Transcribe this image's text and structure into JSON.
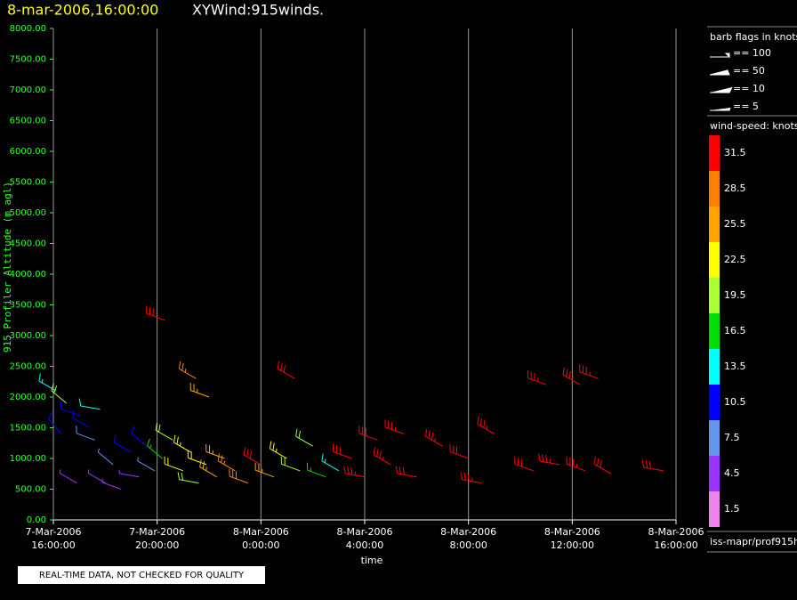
{
  "chart_data": {
    "type": "wind-barb",
    "title": "8-mar-2006,16:00:00",
    "subtitle": "XYWind:915winds.",
    "x_label": "time",
    "y_label": "915 Profiler Altitude (m agl)",
    "xlim": [
      0,
      24
    ],
    "xticks": [
      {
        "value": 0,
        "label": [
          "7-Mar-2006",
          "16:00:00"
        ]
      },
      {
        "value": 4,
        "label": [
          "7-Mar-2006",
          "20:00:00"
        ]
      },
      {
        "value": 8,
        "label": [
          "8-Mar-2006",
          "0:00:00"
        ]
      },
      {
        "value": 12,
        "label": [
          "8-Mar-2006",
          "4:00:00"
        ]
      },
      {
        "value": 16,
        "label": [
          "8-Mar-2006",
          "8:00:00"
        ]
      },
      {
        "value": 20,
        "label": [
          "8-Mar-2006",
          "12:00:00"
        ]
      },
      {
        "value": 24,
        "label": [
          "8-Mar-2006",
          "16:00:00"
        ]
      }
    ],
    "ylim": [
      0,
      8000
    ],
    "yticks": [
      {
        "value": 0,
        "label": "0.00"
      },
      {
        "value": 500,
        "label": "500.00"
      },
      {
        "value": 1000,
        "label": "1000.00"
      },
      {
        "value": 1500,
        "label": "1500.00"
      },
      {
        "value": 2000,
        "label": "2000.00"
      },
      {
        "value": 2500,
        "label": "2500.00"
      },
      {
        "value": 3000,
        "label": "3000.00"
      },
      {
        "value": 3500,
        "label": "3500.00"
      },
      {
        "value": 4000,
        "label": "4000.00"
      },
      {
        "value": 4500,
        "label": "4500.00"
      },
      {
        "value": 5000,
        "label": "5000.00"
      },
      {
        "value": 5500,
        "label": "5500.00"
      },
      {
        "value": 6000,
        "label": "6000.00"
      },
      {
        "value": 6500,
        "label": "6500.00"
      },
      {
        "value": 7000,
        "label": "7000.00"
      },
      {
        "value": 7500,
        "label": "7500.00"
      },
      {
        "value": 8000,
        "label": "8000.00"
      }
    ],
    "grid": true,
    "barbs": {
      "x": [
        0.1,
        0.5,
        1.0,
        1.4,
        1.8,
        0.3,
        0.9,
        1.6,
        2.0,
        2.3,
        2.6,
        3.0,
        3.3,
        3.6,
        3.9,
        4.2,
        4.6,
        5.0,
        5.3,
        5.6,
        5.9,
        4.3,
        5.5,
        6.0,
        6.3,
        6.6,
        7.0,
        7.5,
        8.0,
        8.5,
        9.0,
        9.5,
        10.0,
        10.5,
        9.3,
        11.0,
        11.5,
        12.0,
        12.5,
        13.0,
        13.5,
        14.0,
        15.0,
        16.0,
        16.5,
        17.0,
        18.5,
        19.5,
        20.5,
        21.5,
        19.0,
        20.3,
        21.0,
        23.5
      ],
      "altitude": [
        2100,
        1900,
        1700,
        1500,
        1800,
        1400,
        600,
        1300,
        600,
        900,
        500,
        1100,
        700,
        1200,
        800,
        1000,
        1300,
        800,
        1100,
        600,
        900,
        3250,
        2300,
        2000,
        700,
        1000,
        800,
        600,
        900,
        700,
        1000,
        800,
        1200,
        700,
        2300,
        800,
        1000,
        700,
        1300,
        900,
        1400,
        700,
        1200,
        1000,
        600,
        1400,
        800,
        900,
        800,
        750,
        2200,
        2200,
        2300,
        800
      ],
      "speed": [
        14,
        20,
        10,
        9,
        12,
        9,
        5,
        8,
        4,
        6,
        5,
        9,
        4,
        10,
        7,
        15,
        18,
        21,
        23,
        20,
        22,
        30,
        27,
        26,
        26,
        24,
        27,
        29,
        30,
        25,
        23,
        20,
        18,
        17,
        30,
        14,
        32,
        33,
        32,
        34,
        33,
        32,
        33,
        32,
        33,
        34,
        32,
        33,
        33,
        32,
        33,
        34,
        33,
        32
      ],
      "direction": [
        300,
        310,
        290,
        300,
        280,
        320,
        300,
        290,
        300,
        310,
        290,
        300,
        280,
        310,
        300,
        310,
        300,
        290,
        300,
        280,
        290,
        290,
        300,
        290,
        300,
        290,
        300,
        290,
        300,
        290,
        300,
        290,
        300,
        290,
        300,
        300,
        290,
        280,
        290,
        300,
        290,
        280,
        300,
        290,
        280,
        300,
        290,
        280,
        290,
        300,
        290,
        300,
        290,
        280
      ]
    },
    "barb_legend": {
      "title": "barb flags in knots",
      "entries": [
        "== 100",
        "== 50",
        "== 10",
        "== 5"
      ]
    },
    "colorbar": {
      "title": "wind-speed: knots",
      "labels": [
        31.5,
        28.5,
        25.5,
        22.5,
        19.5,
        16.5,
        13.5,
        10.5,
        7.5,
        4.5,
        1.5
      ],
      "colors": [
        "#ff0000",
        "#ff7f00",
        "#ffa500",
        "#ffff00",
        "#aaff33",
        "#00dd00",
        "#00ffff",
        "#0000ff",
        "#6495ed",
        "#9933ff",
        "#ee82ee"
      ]
    },
    "source": "iss-mapr/prof915h",
    "notice": "REAL-TIME DATA, NOT CHECKED FOR QUALITY"
  }
}
